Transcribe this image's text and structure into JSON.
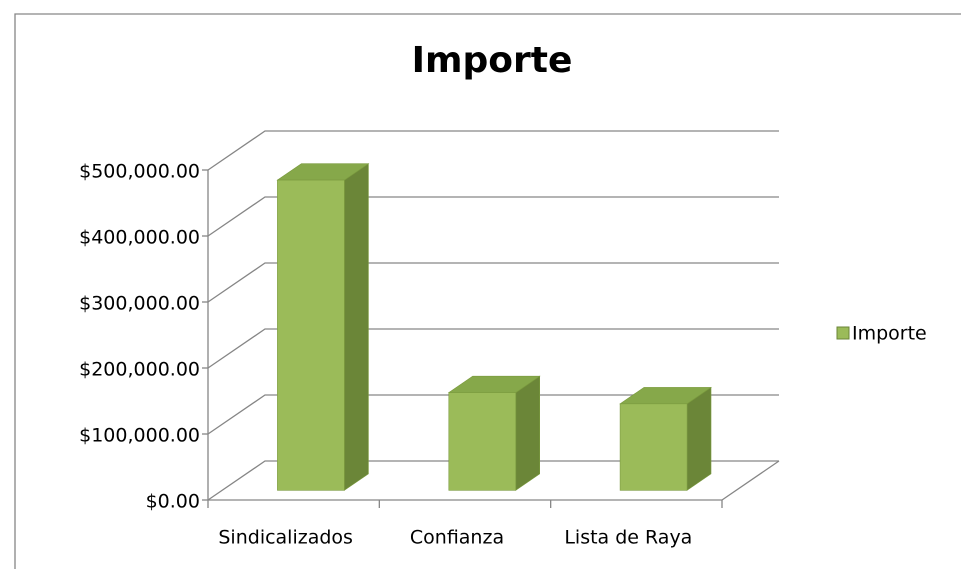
{
  "chart_data": {
    "type": "bar3d",
    "title": "Importe",
    "categories": [
      "Sindicalizados",
      "Confianza",
      "Lista de Raya"
    ],
    "series": [
      {
        "name": "Importe",
        "color": "#9bbb59",
        "values": [
          470000,
          148000,
          131000
        ]
      }
    ],
    "ylim": [
      0,
      500000
    ],
    "yticks": [
      {
        "value": 0,
        "label": "$0.00"
      },
      {
        "value": 100000,
        "label": "$100,000.00"
      },
      {
        "value": 200000,
        "label": "$200,000.00"
      },
      {
        "value": 300000,
        "label": "$300,000.00"
      },
      {
        "value": 400000,
        "label": "$400,000.00"
      },
      {
        "value": 500000,
        "label": "$500,000.00"
      }
    ],
    "grid": true,
    "legend": "right"
  }
}
